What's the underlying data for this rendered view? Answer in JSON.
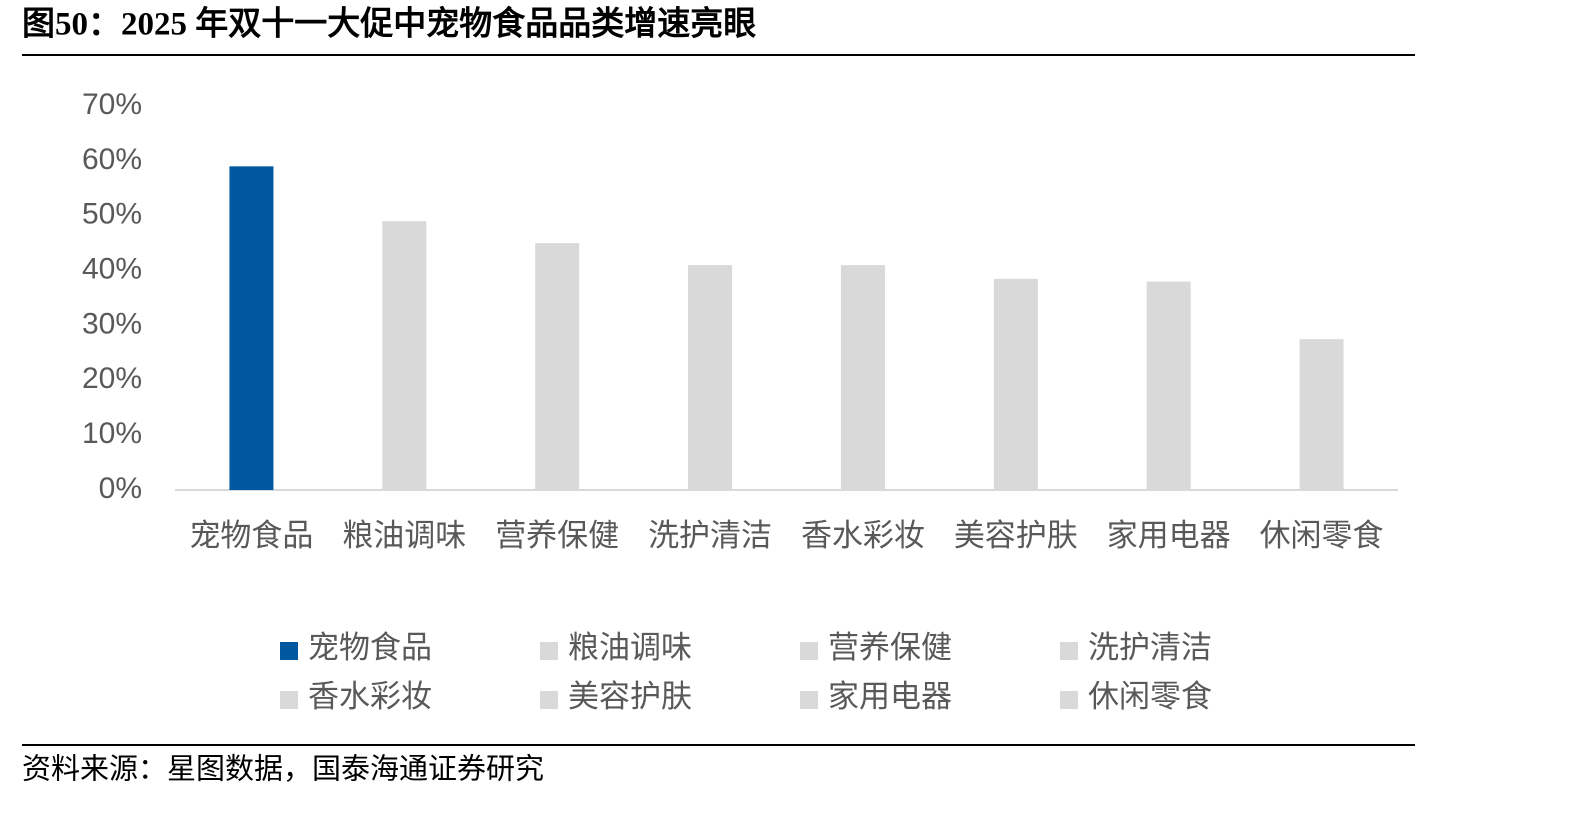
{
  "chart_data": {
    "type": "bar",
    "title": "图50：2025 年双十一大促中宠物食品品类增速亮眼",
    "categories": [
      "宠物食品",
      "粮油调味",
      "营养保健",
      "洗护清洁",
      "香水彩妆",
      "美容护肤",
      "家用电器",
      "休闲零食"
    ],
    "values": [
      59,
      49,
      45,
      41,
      41,
      38.5,
      38,
      27.5
    ],
    "colors": [
      "#0058a0",
      "#d9d9d9",
      "#d9d9d9",
      "#d9d9d9",
      "#d9d9d9",
      "#d9d9d9",
      "#d9d9d9",
      "#d9d9d9"
    ],
    "ylim": [
      0,
      70
    ],
    "yticks": [
      {
        "value": 0,
        "label": "0%"
      },
      {
        "value": 10,
        "label": "10%"
      },
      {
        "value": 20,
        "label": "20%"
      },
      {
        "value": 30,
        "label": "30%"
      },
      {
        "value": 40,
        "label": "40%"
      },
      {
        "value": 50,
        "label": "50%"
      },
      {
        "value": 60,
        "label": "60%"
      },
      {
        "value": 70,
        "label": "70%"
      }
    ],
    "legend": true,
    "source": "资料来源：星图数据，国泰海通证券研究"
  }
}
